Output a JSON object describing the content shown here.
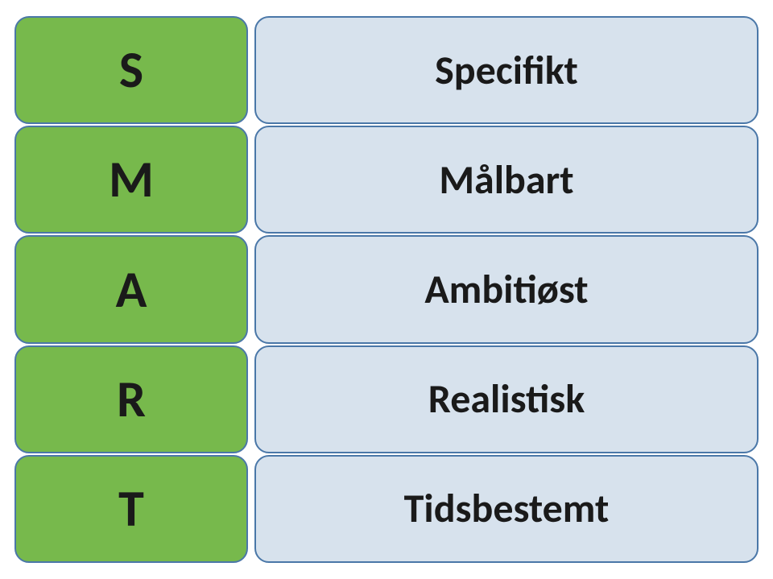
{
  "rows": [
    {
      "letter": "S",
      "description": "Specifikt"
    },
    {
      "letter": "M",
      "description": "Målbart"
    },
    {
      "letter": "A",
      "description": "Ambitiøst"
    },
    {
      "letter": "R",
      "description": "Realistisk"
    },
    {
      "letter": "T",
      "description": "Tidsbestemt"
    }
  ],
  "style": {
    "letter_bg": "#77b94c",
    "desc_bg": "#d7e2ed",
    "border_color": "#4a77a8",
    "text_color": "#1a1a1a",
    "letter_fontsize": 64,
    "desc_fontsize": 50,
    "font_weight": 700,
    "border_radius": 18
  }
}
